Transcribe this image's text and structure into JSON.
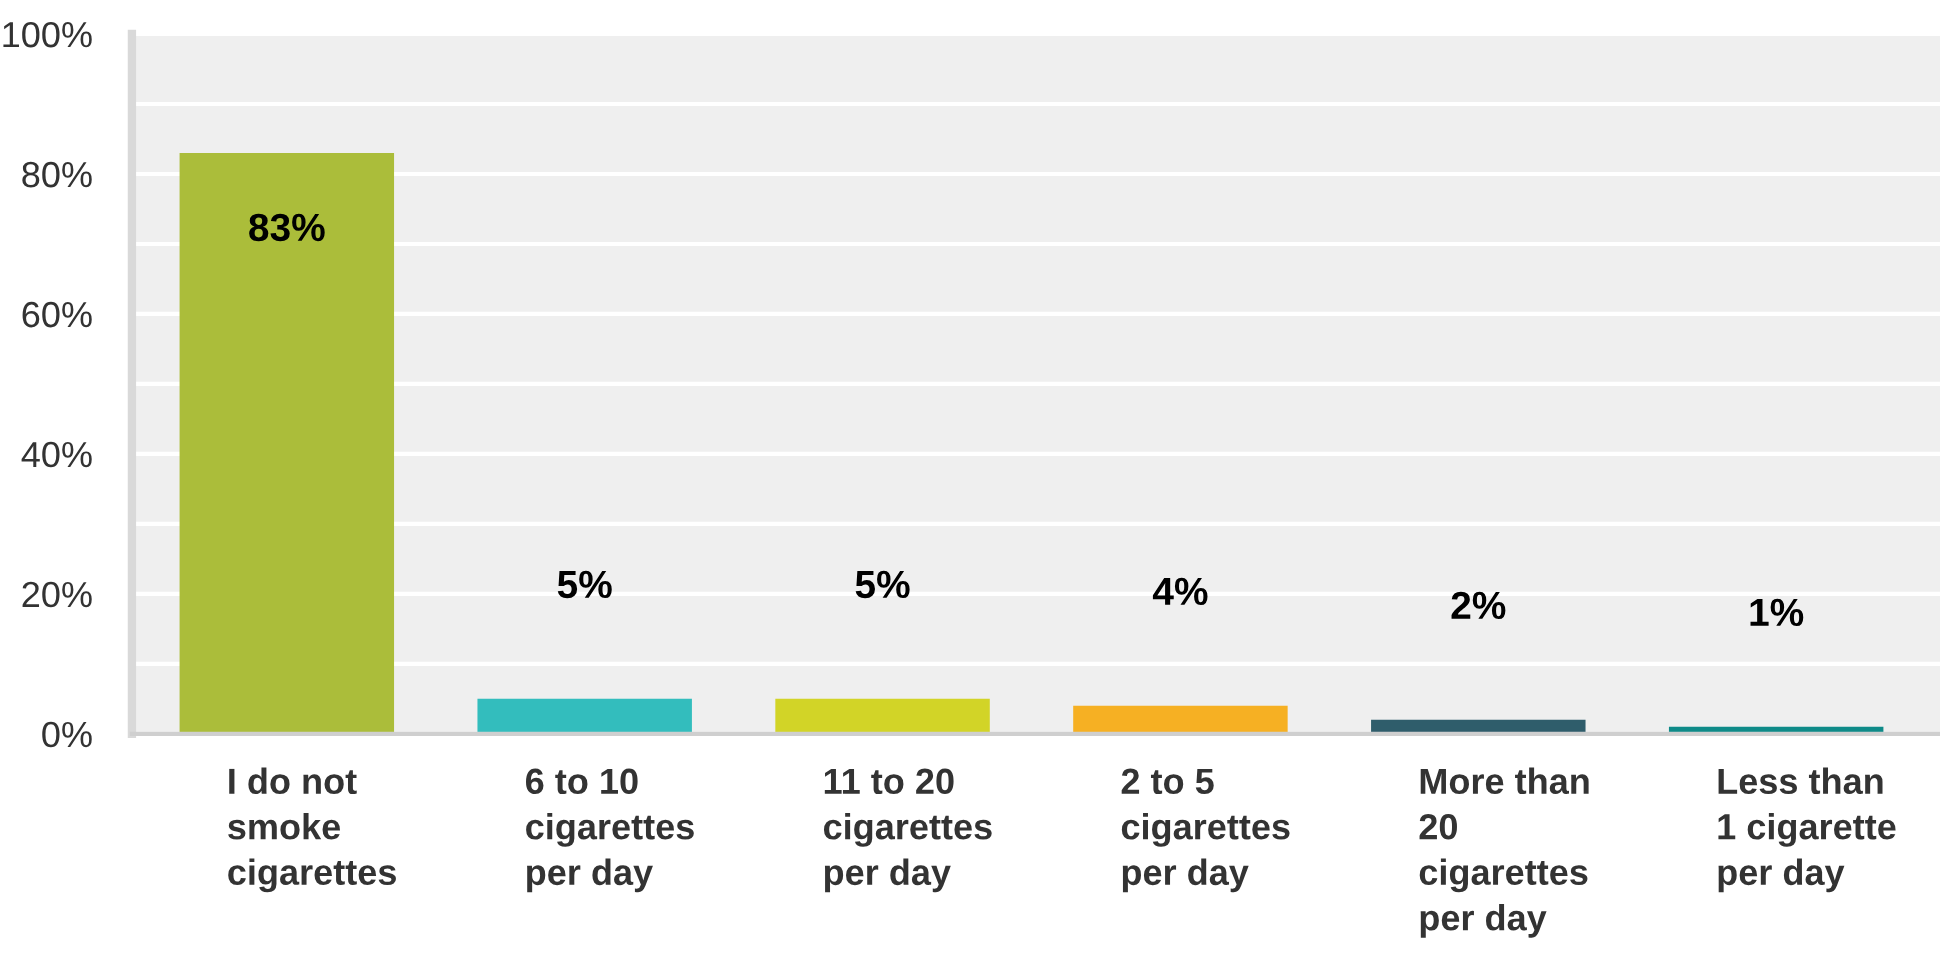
{
  "chart_data": {
    "type": "bar",
    "categories": [
      "I do not\nsmoke\ncigarettes",
      "6 to 10\ncigarettes\nper day",
      "11 to 20\ncigarettes\nper day",
      "2 to 5\ncigarettes\nper day",
      "More than\n20\ncigarettes\nper day",
      "Less than\n1 cigarette\nper day"
    ],
    "values": [
      83,
      5,
      5,
      4,
      2,
      1
    ],
    "colors": [
      "#abbd3a",
      "#33bdbd",
      "#d2d427",
      "#f6b023",
      "#2f5d6b",
      "#0e8a88"
    ],
    "value_labels": [
      "83%",
      "5%",
      "5%",
      "4%",
      "2%",
      "1%"
    ],
    "ylim": [
      0,
      100
    ],
    "yticks": [
      {
        "value": 0,
        "label": "0%"
      },
      {
        "value": 10,
        "label": null
      },
      {
        "value": 20,
        "label": "20%"
      },
      {
        "value": 30,
        "label": null
      },
      {
        "value": 40,
        "label": "40%"
      },
      {
        "value": 50,
        "label": null
      },
      {
        "value": 60,
        "label": "60%"
      },
      {
        "value": 70,
        "label": null
      },
      {
        "value": 80,
        "label": "80%"
      },
      {
        "value": 90,
        "label": null
      },
      {
        "value": 100,
        "label": "100%"
      }
    ],
    "grid": "y",
    "legend": false
  }
}
